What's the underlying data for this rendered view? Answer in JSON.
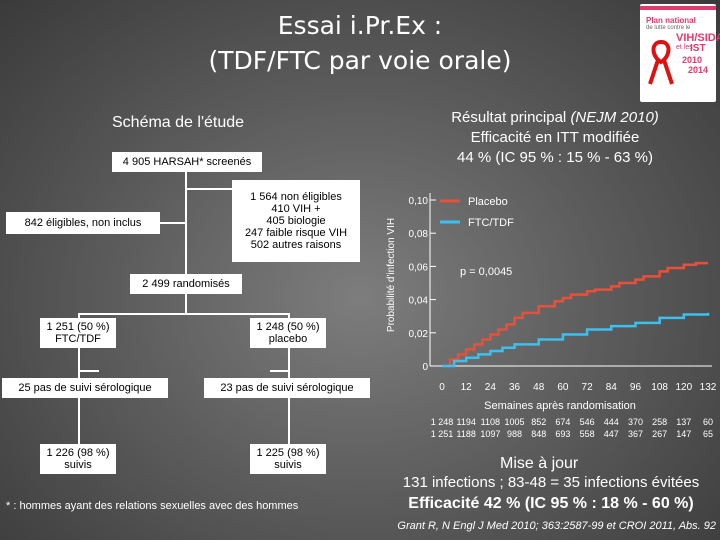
{
  "title": {
    "line1": "Essai i.Pr.Ex :",
    "line2": "(TDF/FTC par voie orale)"
  },
  "logo": {
    "line1": "Plan national",
    "line2": "de lutte contre le",
    "line3": "VIH/SIDA",
    "line4": "et les",
    "line5": "IST",
    "years1": "2010",
    "years2": "2014"
  },
  "schema": {
    "title": "Schéma de l'étude",
    "screened": "4 905 HARSAH* screenés",
    "not_eligible": [
      "1 564 non éligibles",
      "410 VIH +",
      "405 biologie",
      "247 faible risque VIH",
      "502 autres raisons"
    ],
    "eligible_not_included": "842 éligibles, non inclus",
    "randomized": "2 499 randomisés",
    "arm_ftc": [
      "1 251 (50 %)",
      "FTC/TDF"
    ],
    "arm_placebo": [
      "1 248 (50 %)",
      "placebo"
    ],
    "lost_ftc": "25 pas de suivi sérologique",
    "lost_placebo": "23 pas de suivi sérologique",
    "followed_ftc": [
      "1 226 (98 %)",
      "suivis"
    ],
    "followed_placebo": [
      "1 225 (98 %)",
      "suivis"
    ],
    "footnote": "* : hommes ayant des relations sexuelles avec des hommes"
  },
  "result": {
    "line1a": "Résultat principal ",
    "line1b": "(NEJM 2010)",
    "line2": "Efficacité en ITT modifiée",
    "line3": "44 % (IC 95 % : 15 % - 63 %)"
  },
  "chart_data": {
    "type": "line",
    "ylabel": "Probabilité d'infection VIH",
    "xlabel": "Semaines après randomisation",
    "ylim": [
      0,
      0.1
    ],
    "yticks": [
      "0",
      "0,02",
      "0,04",
      "0,06",
      "0,08",
      "0,10"
    ],
    "xticks": [
      "0",
      "12",
      "24",
      "36",
      "48",
      "60",
      "72",
      "84",
      "96",
      "108",
      "120",
      "132"
    ],
    "annotation": "p = 0,0045",
    "legend_position": "top-right",
    "series": [
      {
        "name": "Placebo",
        "color": "#e8503a",
        "x": [
          0,
          4,
          8,
          12,
          16,
          20,
          24,
          28,
          32,
          36,
          40,
          48,
          56,
          60,
          64,
          72,
          76,
          84,
          88,
          96,
          100,
          108,
          112,
          120,
          126,
          132
        ],
        "y": [
          0,
          0.004,
          0.007,
          0.01,
          0.013,
          0.016,
          0.019,
          0.022,
          0.025,
          0.029,
          0.032,
          0.036,
          0.039,
          0.041,
          0.043,
          0.045,
          0.046,
          0.048,
          0.05,
          0.052,
          0.054,
          0.057,
          0.059,
          0.061,
          0.062,
          0.062
        ]
      },
      {
        "name": "FTC/TDF",
        "color": "#3cc0f0",
        "x": [
          0,
          6,
          12,
          18,
          24,
          30,
          36,
          48,
          60,
          72,
          84,
          96,
          108,
          120,
          132
        ],
        "y": [
          0,
          0.003,
          0.005,
          0.007,
          0.009,
          0.011,
          0.013,
          0.016,
          0.019,
          0.022,
          0.024,
          0.026,
          0.029,
          0.031,
          0.032
        ]
      }
    ],
    "at_risk": {
      "placebo": [
        "1 248",
        "1194",
        "1108",
        "1005",
        "852",
        "674",
        "546",
        "444",
        "370",
        "258",
        "137",
        "60"
      ],
      "ftc": [
        "1 251",
        "1188",
        "1097",
        "988",
        "848",
        "693",
        "558",
        "447",
        "367",
        "267",
        "147",
        "65"
      ]
    }
  },
  "mise_a_jour": {
    "title": "Mise à jour",
    "line1": "131 infections ; 83-48 = 35 infections évitées",
    "line2": "Efficacité 42 % (IC 95 % : 18 % - 60 %)",
    "citation": "Grant R, N Engl J Med 2010; 363:2587-99 et CROI 2011, Abs. 92"
  }
}
